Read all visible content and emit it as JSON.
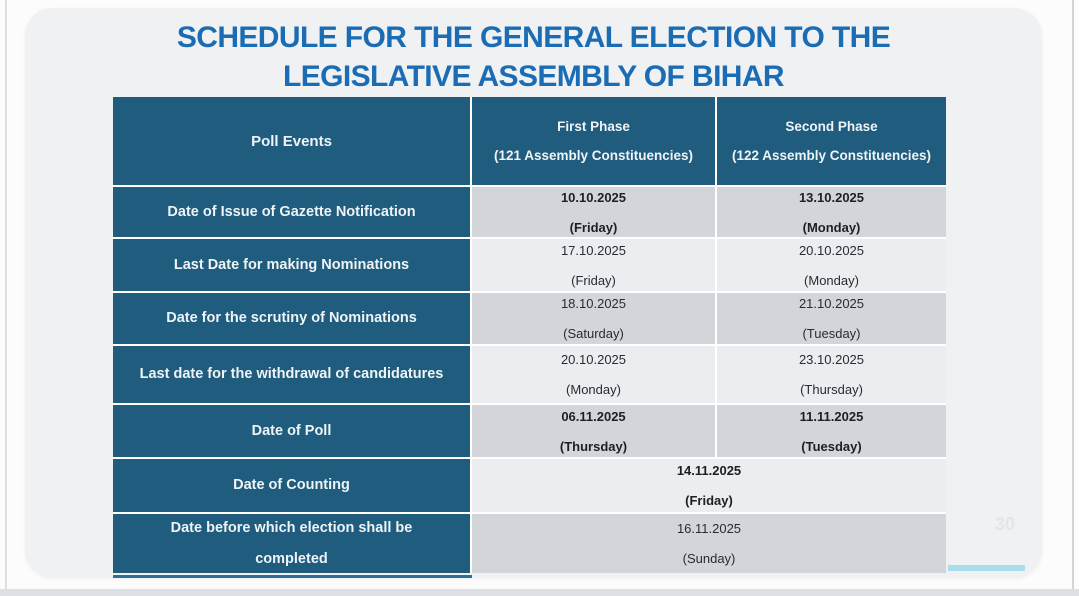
{
  "title": {
    "line1": "SCHEDULE FOR THE GENERAL ELECTION TO THE",
    "line2": "LEGISLATIVE ASSEMBLY OF BIHAR"
  },
  "page_number": "30",
  "colors": {
    "title_blue": "#1a6cb4",
    "header_teal": "#1f5c7d",
    "row_dark": "#d2d5da",
    "row_light": "#ebedf0",
    "accent_bar": "#a9dcec"
  },
  "table": {
    "headers": {
      "col1": "Poll Events",
      "col2_line1": "First Phase",
      "col2_line2": "(121 Assembly Constituencies)",
      "col3_line1": "Second Phase",
      "col3_line2": "(122 Assembly Constituencies)"
    },
    "rows": [
      {
        "label": "Date of Issue of Gazette Notification",
        "phase1_date": "10.10.2025",
        "phase1_day": "(Friday)",
        "phase2_date": "13.10.2025",
        "phase2_day": "(Monday)"
      },
      {
        "label": "Last Date for making Nominations",
        "phase1_date": "17.10.2025",
        "phase1_day": "(Friday)",
        "phase2_date": "20.10.2025",
        "phase2_day": "(Monday)"
      },
      {
        "label": "Date for the scrutiny of Nominations",
        "phase1_date": "18.10.2025",
        "phase1_day": "(Saturday)",
        "phase2_date": "21.10.2025",
        "phase2_day": "(Tuesday)"
      },
      {
        "label": "Last date for the withdrawal of candidatures",
        "phase1_date": "20.10.2025",
        "phase1_day": "(Monday)",
        "phase2_date": "23.10.2025",
        "phase2_day": "(Thursday)"
      },
      {
        "label": "Date of Poll",
        "phase1_date": "06.11.2025",
        "phase1_day": "(Thursday)",
        "phase2_date": "11.11.2025",
        "phase2_day": "(Tuesday)"
      },
      {
        "label": "Date of Counting",
        "merged_date": "14.11.2025",
        "merged_day": "(Friday)"
      },
      {
        "label": "Date before which election shall be completed",
        "merged_date": "16.11.2025",
        "merged_day": "(Sunday)"
      }
    ]
  }
}
